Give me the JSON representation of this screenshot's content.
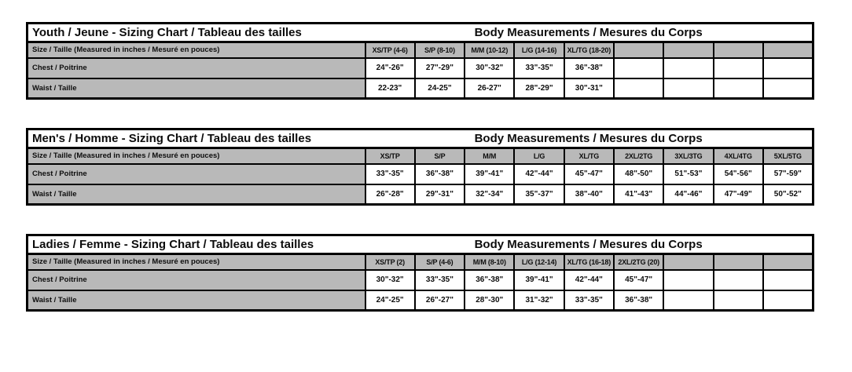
{
  "colors": {
    "header_gray": "#b9b9b9",
    "border_black": "#000000",
    "cell_white": "#ffffff"
  },
  "tables": [
    {
      "title": "Youth / Jeune - Sizing Chart / Tableau des tailles",
      "measurements_title": "Body Measurements / Mesures du Corps",
      "size_label": "Size / Taille  (Measured in inches / Mesuré en pouces)",
      "sizes": [
        "XS/TP (4-6)",
        "S/P (8-10)",
        "M/M (10-12)",
        "L/G (14-16)",
        "XL/TG (18-20)",
        "",
        "",
        "",
        ""
      ],
      "rows": [
        {
          "label": "Chest / Poitrine",
          "values": [
            "24\"-26\"",
            "27\"-29\"",
            "30\"-32\"",
            "33\"-35\"",
            "36\"-38\"",
            "",
            "",
            "",
            ""
          ]
        },
        {
          "label": "Waist / Taille",
          "values": [
            "22-23\"",
            "24-25\"",
            "26-27\"",
            "28\"-29\"",
            "30\"-31\"",
            "",
            "",
            "",
            ""
          ]
        }
      ]
    },
    {
      "title": "Men's / Homme - Sizing Chart / Tableau des tailles",
      "measurements_title": "Body Measurements / Mesures du Corps",
      "size_label": "Size / Taille  (Measured in inches / Mesuré en pouces)",
      "sizes": [
        "XS/TP",
        "S/P",
        "M/M",
        "L/G",
        "XL/TG",
        "2XL/2TG",
        "3XL/3TG",
        "4XL/4TG",
        "5XL/5TG"
      ],
      "rows": [
        {
          "label": "Chest / Poitrine",
          "values": [
            "33\"-35\"",
            "36\"-38\"",
            "39\"-41\"",
            "42\"-44\"",
            "45\"-47\"",
            "48\"-50\"",
            "51\"-53\"",
            "54\"-56\"",
            "57\"-59\""
          ]
        },
        {
          "label": "Waist / Taille",
          "values": [
            "26\"-28\"",
            "29\"-31\"",
            "32\"-34\"",
            "35\"-37\"",
            "38\"-40\"",
            "41\"-43\"",
            "44\"-46\"",
            "47\"-49\"",
            "50\"-52\""
          ]
        }
      ]
    },
    {
      "title": "Ladies / Femme - Sizing Chart / Tableau des tailles",
      "measurements_title": "Body Measurements / Mesures du Corps",
      "size_label": "Size / Taille  (Measured in inches / Mesuré en pouces)",
      "sizes": [
        "XS/TP (2)",
        "S/P (4-6)",
        "M/M (8-10)",
        "L/G (12-14)",
        "XL/TG (16-18)",
        "2XL/2TG (20)",
        "",
        "",
        ""
      ],
      "rows": [
        {
          "label": "Chest / Poitrine",
          "values": [
            "30\"-32\"",
            "33\"-35\"",
            "36\"-38\"",
            "39\"-41\"",
            "42\"-44\"",
            "45\"-47\"",
            "",
            "",
            ""
          ]
        },
        {
          "label": "Waist / Taille",
          "values": [
            "24\"-25\"",
            "26\"-27\"",
            "28\"-30\"",
            "31\"-32\"",
            "33\"-35\"",
            "36\"-38\"",
            "",
            "",
            ""
          ]
        }
      ]
    }
  ]
}
